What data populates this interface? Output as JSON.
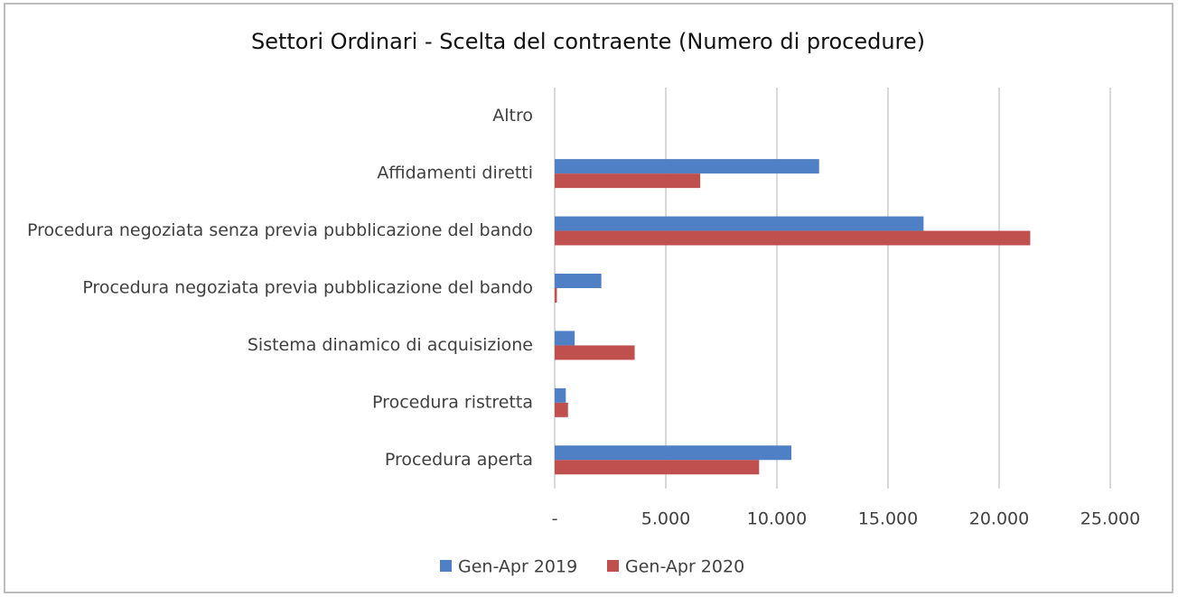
{
  "chart_data": {
    "type": "bar",
    "orientation": "horizontal",
    "title": "Settori Ordinari - Scelta del contraente (Numero di procedure)",
    "categories": [
      "Altro",
      "Affidamenti diretti",
      "Procedura negoziata senza previa pubblicazione del bando",
      "Procedura negoziata previa pubblicazione del bando",
      "Sistema dinamico di acquisizione",
      "Procedura ristretta",
      "Procedura aperta"
    ],
    "series": [
      {
        "name": "Gen-Apr 2019",
        "color": "#4f7fc4",
        "values": [
          0,
          11900,
          16600,
          2100,
          900,
          500,
          10650
        ]
      },
      {
        "name": "Gen-Apr 2020",
        "color": "#c0504d",
        "values": [
          0,
          6550,
          21400,
          100,
          3600,
          600,
          9200
        ]
      }
    ],
    "xlim": [
      0,
      25000
    ],
    "xticks": [
      {
        "value": 0,
        "label": "-"
      },
      {
        "value": 5000,
        "label": "5.000"
      },
      {
        "value": 10000,
        "label": "10.000"
      },
      {
        "value": 15000,
        "label": "15.000"
      },
      {
        "value": 20000,
        "label": "20.000"
      },
      {
        "value": 25000,
        "label": "25.000"
      }
    ],
    "grid": true,
    "legend": "bottom"
  }
}
